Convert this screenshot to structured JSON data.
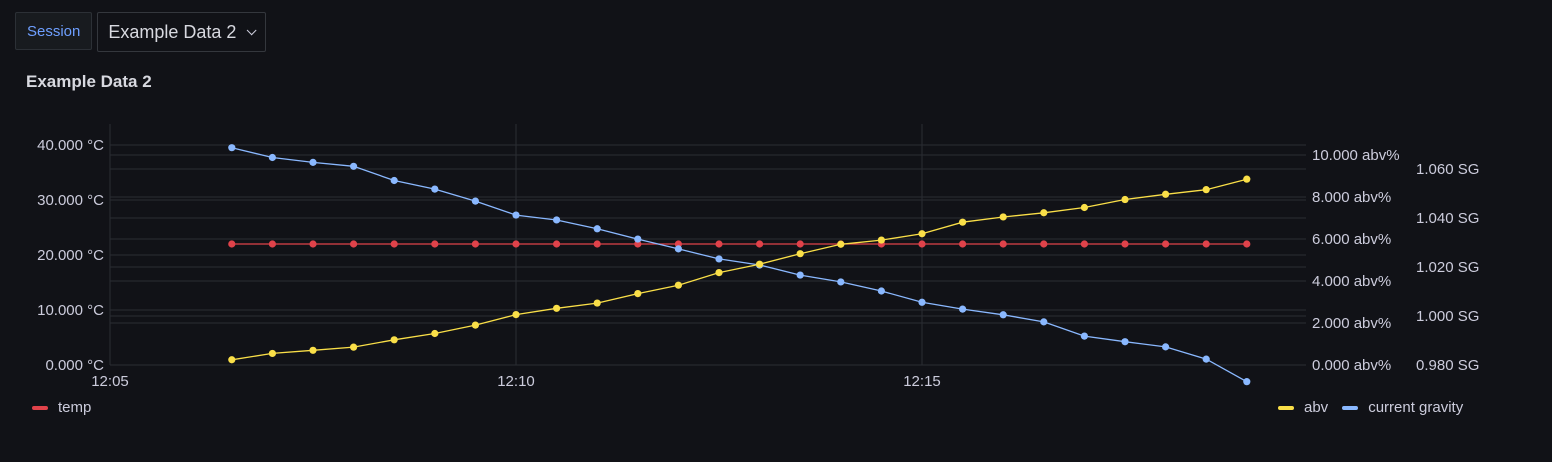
{
  "session": {
    "label": "Session",
    "selected_dataset": "Example Data 2"
  },
  "panel": {
    "title": "Example Data 2"
  },
  "colors": {
    "temp": "#e0424a",
    "abv": "#fadf48",
    "gravity": "#8ab8ff",
    "grid": "#2a2d33"
  },
  "legend": {
    "left": [
      {
        "key": "temp",
        "label": "temp"
      }
    ],
    "right": [
      {
        "key": "abv",
        "label": "abv"
      },
      {
        "key": "gravity",
        "label": "current gravity"
      }
    ]
  },
  "chart_data": {
    "type": "line",
    "title": "Example Data 2",
    "x_ticks": [
      "12:05",
      "12:10",
      "12:15"
    ],
    "x_tick_minutes": [
      0,
      5,
      10
    ],
    "x_range_minutes": [
      0,
      14.7
    ],
    "grid": true,
    "legend_placement": "bottom",
    "axes": {
      "left": {
        "unit": "°C",
        "range": [
          0,
          40
        ],
        "ticks": [
          "40.000 °C",
          "30.000 °C",
          "20.000 °C",
          "10.000 °C",
          "0.000 °C"
        ],
        "tick_values": [
          40,
          30,
          20,
          10,
          0
        ]
      },
      "right_abv": {
        "unit": "abv%",
        "range": [
          0,
          10.5
        ],
        "ticks": [
          "10.000 abv%",
          "8.000 abv%",
          "6.000 abv%",
          "4.000 abv%",
          "2.000 abv%",
          "0.000 abv%"
        ],
        "tick_values": [
          10,
          8,
          6,
          4,
          2,
          0
        ]
      },
      "right_sg": {
        "unit": "SG",
        "range": [
          0.98,
          1.0687
        ],
        "ticks": [
          "1.060 SG",
          "1.040 SG",
          "1.020 SG",
          "1.000 SG",
          "0.980 SG"
        ],
        "tick_values": [
          1.06,
          1.04,
          1.02,
          1.0,
          0.98
        ]
      }
    },
    "x_minutes": [
      1.5,
      2.0,
      2.5,
      3.0,
      3.5,
      4.0,
      4.5,
      5.0,
      5.5,
      6.0,
      6.5,
      7.0,
      7.5,
      8.0,
      8.5,
      9.0,
      9.5,
      10.0,
      10.5,
      11.0,
      11.5,
      12.0,
      12.5,
      13.0,
      13.5,
      14.0
    ],
    "series": [
      {
        "name": "temp",
        "axis": "left",
        "values": [
          22,
          22,
          22,
          22,
          22,
          22,
          22,
          22,
          22,
          22,
          22,
          22,
          22,
          22,
          22,
          22,
          22,
          22,
          22,
          22,
          22,
          22,
          22,
          22,
          22,
          22
        ]
      },
      {
        "name": "abv",
        "axis": "right_abv",
        "values": [
          0.25,
          0.55,
          0.7,
          0.85,
          1.2,
          1.5,
          1.9,
          2.4,
          2.7,
          2.95,
          3.4,
          3.8,
          4.4,
          4.8,
          5.3,
          5.75,
          5.95,
          6.25,
          6.8,
          7.05,
          7.25,
          7.5,
          7.88,
          8.13,
          8.35,
          8.85
        ]
      },
      {
        "name": "current gravity",
        "axis": "right_sg",
        "values": [
          1.0687,
          1.0647,
          1.0627,
          1.0611,
          1.0553,
          1.0518,
          1.0469,
          1.0412,
          1.0392,
          1.0356,
          1.0314,
          1.0274,
          1.0233,
          1.0208,
          1.0167,
          1.0139,
          1.0102,
          1.0056,
          1.0028,
          1.0005,
          0.9976,
          0.9918,
          0.9895,
          0.9874,
          0.9824,
          0.9732
        ]
      }
    ]
  }
}
